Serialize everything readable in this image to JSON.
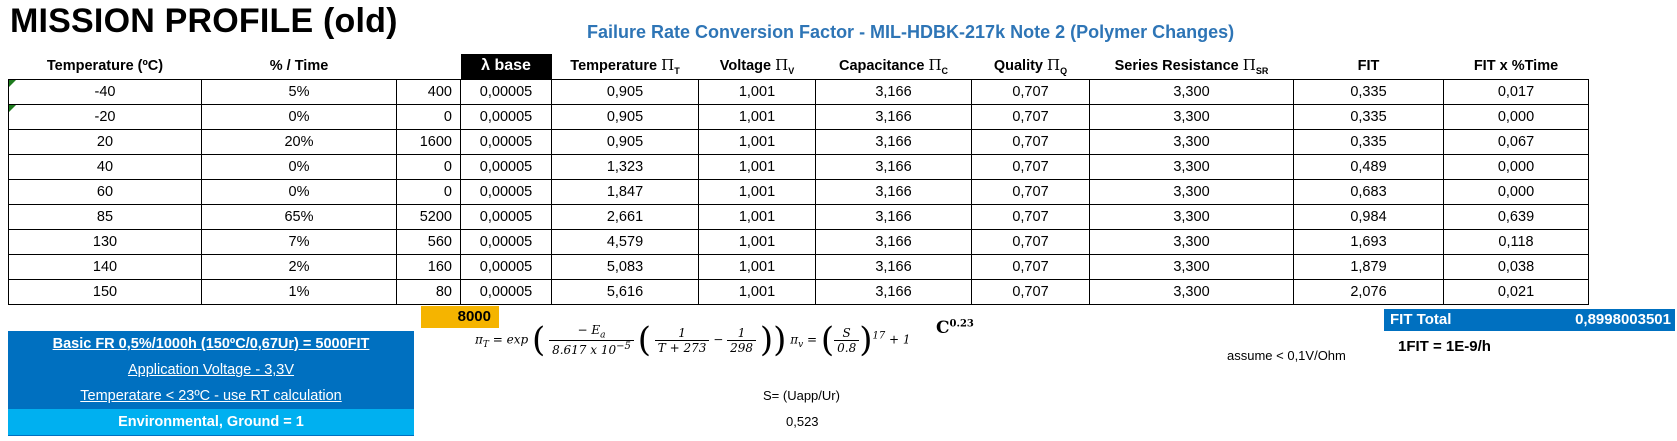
{
  "title": "MISSION PROFILE (old)",
  "subtitle": "Failure Rate Conversion Factor - MIL-HDBK-217k Note 2 (Polymer Changes)",
  "headers": {
    "temperature": "Temperature (ºC)",
    "percent_time": "% / Time",
    "hours": "",
    "lambda_base": "λ base",
    "pi_t": "Temperature",
    "pi_v": "Voltage",
    "pi_c": "Capacitance",
    "pi_q": "Quality",
    "pi_sr": "Series Resistance",
    "fit": "FIT",
    "fit_time": "FIT x %Time",
    "pi_symbol": "Π",
    "sub_t": "T",
    "sub_v": "V",
    "sub_c": "C",
    "sub_q": "Q",
    "sub_sr": "SR"
  },
  "rows": [
    [
      "-40",
      "5%",
      "400",
      "0,00005",
      "0,905",
      "1,001",
      "3,166",
      "0,707",
      "3,300",
      "0,335",
      "0,017"
    ],
    [
      "-20",
      "0%",
      "0",
      "0,00005",
      "0,905",
      "1,001",
      "3,166",
      "0,707",
      "3,300",
      "0,335",
      "0,000"
    ],
    [
      "20",
      "20%",
      "1600",
      "0,00005",
      "0,905",
      "1,001",
      "3,166",
      "0,707",
      "3,300",
      "0,335",
      "0,067"
    ],
    [
      "40",
      "0%",
      "0",
      "0,00005",
      "1,323",
      "1,001",
      "3,166",
      "0,707",
      "3,300",
      "0,489",
      "0,000"
    ],
    [
      "60",
      "0%",
      "0",
      "0,00005",
      "1,847",
      "1,001",
      "3,166",
      "0,707",
      "3,300",
      "0,683",
      "0,000"
    ],
    [
      "85",
      "65%",
      "5200",
      "0,00005",
      "2,661",
      "1,001",
      "3,166",
      "0,707",
      "3,300",
      "0,984",
      "0,639"
    ],
    [
      "130",
      "7%",
      "560",
      "0,00005",
      "4,579",
      "1,001",
      "3,166",
      "0,707",
      "3,300",
      "1,693",
      "0,118"
    ],
    [
      "140",
      "2%",
      "160",
      "0,00005",
      "5,083",
      "1,001",
      "3,166",
      "0,707",
      "3,300",
      "1,879",
      "0,038"
    ],
    [
      "150",
      "1%",
      "80",
      "0,00005",
      "5,616",
      "1,001",
      "3,166",
      "0,707",
      "3,300",
      "2,076",
      "0,021"
    ]
  ],
  "total_hours": "8000",
  "fit_total_label": "FIT Total",
  "fit_total_value": "0,8998003501",
  "fit_definition": "1FIT = 1E-9/h",
  "assume_note": "assume < 0,1V/Ohm",
  "notes": {
    "basic_fr": "Basic FR 0,5%/1000h (150ºC/0,67Ur) = 5000FIT",
    "app_voltage": "Application Voltage - 3,3V",
    "temperature": "Temperatare < 23ºC - use RT calculation",
    "environmental": "Environmental, Ground = 1"
  },
  "formula": {
    "pi_t_lhs": "π",
    "pi_t_sub": "T",
    "eq_exp": "= exp",
    "ea_num": "− E",
    "ea_sub": "a",
    "ea_den": "8.617 x 10",
    "ea_den_exp": "−5",
    "one": "1",
    "t_den": "T + 273",
    "ref_den": "298",
    "minus": "−",
    "pi_v_lhs": "π",
    "pi_v_sub": "v",
    "s_num": "S",
    "s_den": "0.8",
    "exponent": "17",
    "plus_one": "+ 1"
  },
  "cap_formula_base": "C",
  "cap_formula_exp": "0.23",
  "s_formula": "S= (Uapp/Ur)",
  "s_value": "0,523"
}
